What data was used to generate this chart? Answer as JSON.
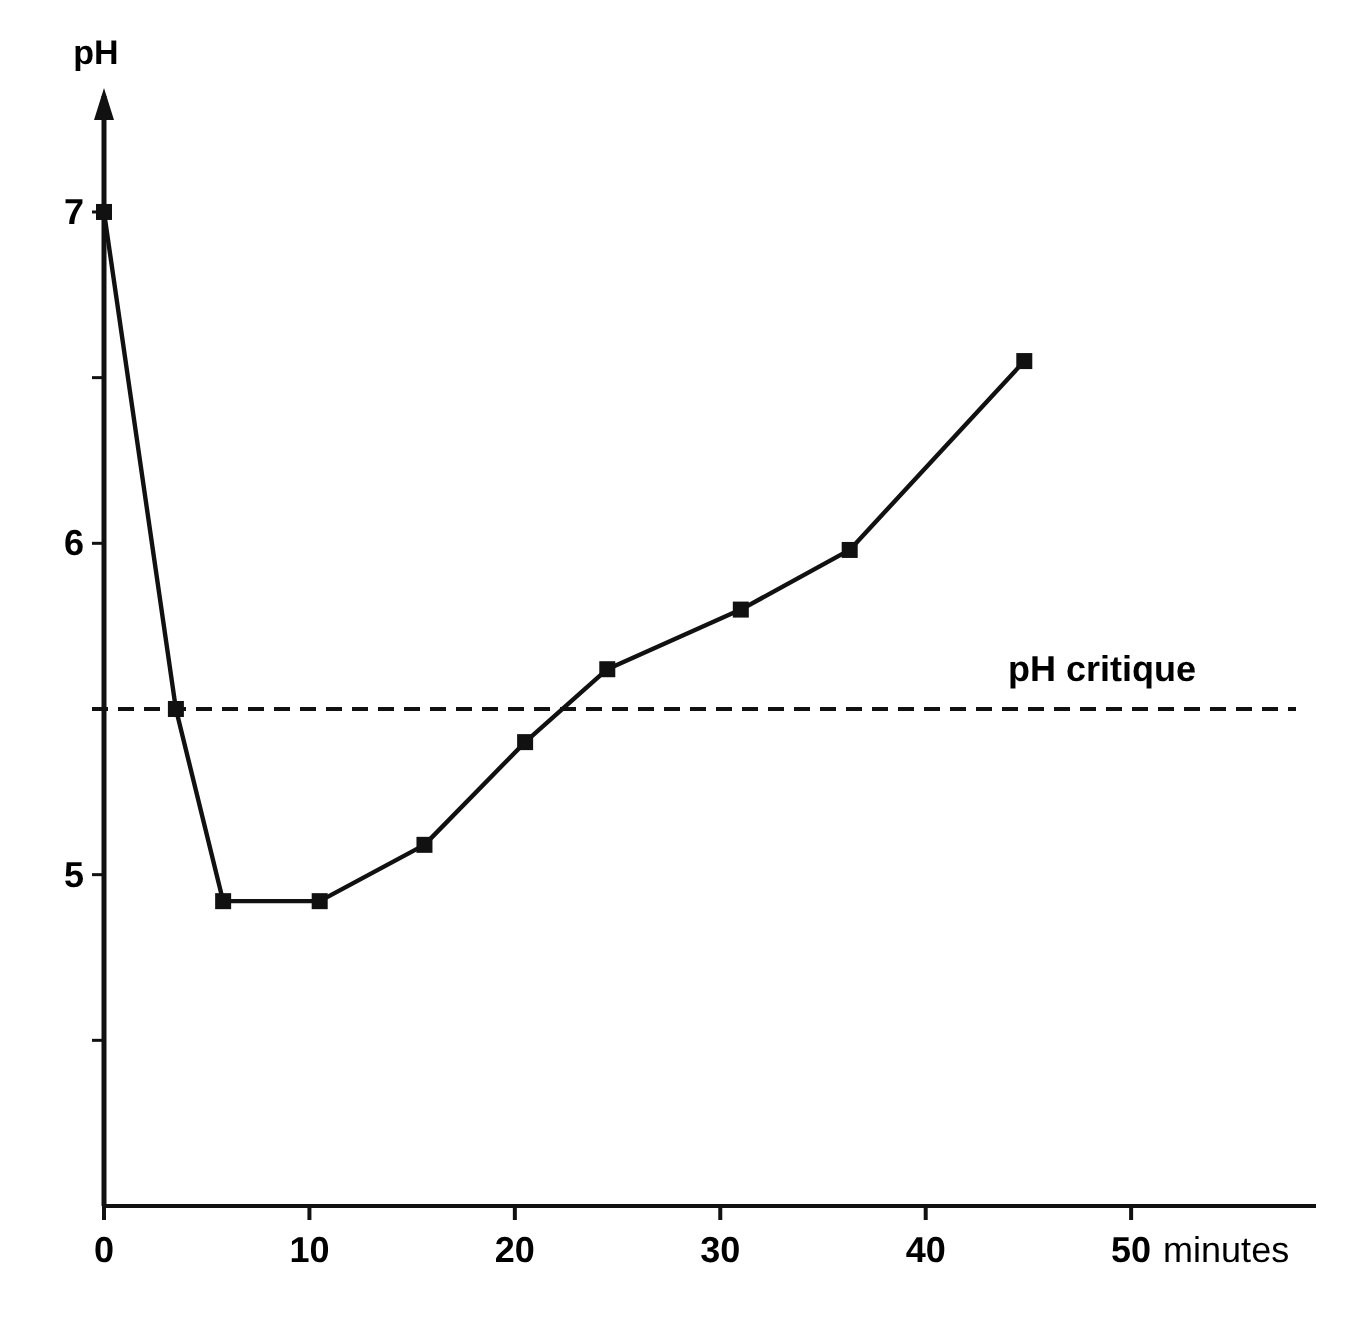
{
  "chart_data": {
    "type": "line",
    "ylabel": "pH",
    "xlabel": "minutes",
    "x": [
      0,
      3.5,
      5.8,
      10.5,
      15.6,
      20.5,
      24.5,
      31,
      36.3,
      44.8
    ],
    "series": [
      {
        "color": "#111111",
        "values": [
          7,
          5.5,
          4.92,
          4.92,
          5.09,
          5.4,
          5.62,
          5.8,
          5.98,
          6.55
        ]
      }
    ],
    "xlim": [
      0,
      59
    ],
    "xticks": [
      0,
      10,
      20,
      30,
      40,
      50
    ],
    "ylim": [
      4.0,
      7.35
    ],
    "yticks": [
      {
        "value": 4.5,
        "label": null
      },
      5,
      {
        "value": 5.5,
        "label": null
      },
      6,
      {
        "value": 6.5,
        "label": null
      },
      7
    ],
    "ref_lines": [
      {
        "axis": "y",
        "value": 5.5,
        "label": "pH critique",
        "line_style": "dashed",
        "color": "#111111"
      }
    ],
    "marker": "square",
    "line_style": "solid",
    "grid": false
  }
}
